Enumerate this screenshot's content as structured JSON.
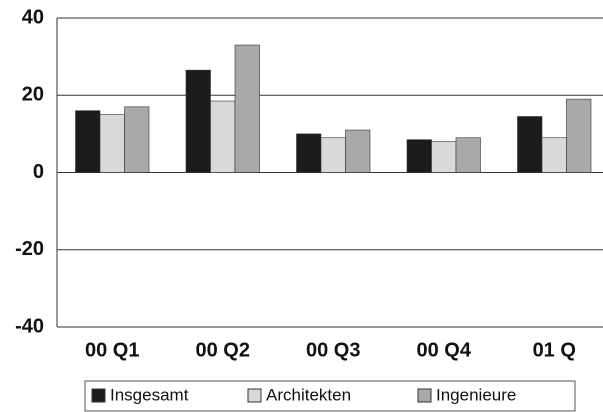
{
  "chart_data": {
    "type": "bar",
    "categories": [
      "00 Q1",
      "00 Q2",
      "00 Q3",
      "00 Q4",
      "01 Q"
    ],
    "series": [
      {
        "name": "Insgesamt",
        "color": "#1c1c1c",
        "values": [
          16,
          26.5,
          10,
          8.5,
          14.5
        ]
      },
      {
        "name": "Architekten",
        "color": "#d9d9d9",
        "values": [
          15,
          18.5,
          9,
          8,
          9
        ]
      },
      {
        "name": "Ingenieure",
        "color": "#a9a9a9",
        "values": [
          17,
          33,
          11,
          9,
          19
        ]
      }
    ],
    "ylim": [
      -40,
      40
    ],
    "yticks": [
      -40,
      -20,
      0,
      20,
      40
    ],
    "grid": true,
    "legend": "bottom"
  }
}
